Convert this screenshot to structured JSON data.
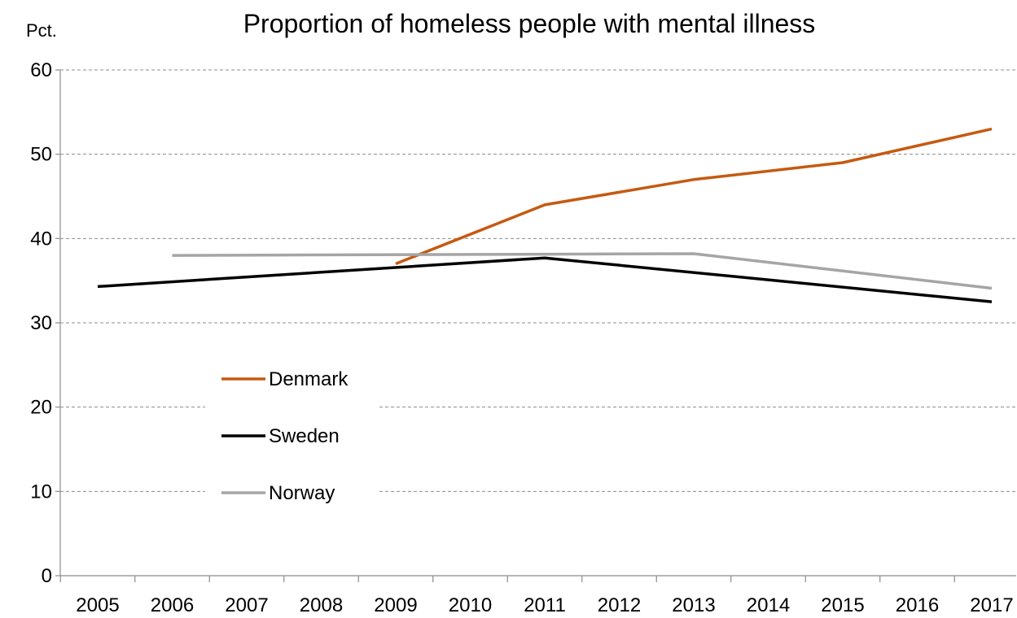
{
  "chart_data": {
    "type": "line",
    "title": "Proportion of homeless people with mental illness",
    "ylabel": "Pct.",
    "xlabel": "",
    "x": [
      "2005",
      "2006",
      "2007",
      "2008",
      "2009",
      "2010",
      "2011",
      "2012",
      "2013",
      "2014",
      "2015",
      "2016",
      "2017"
    ],
    "yticks": [
      "0",
      "10",
      "20",
      "30",
      "40",
      "50",
      "60"
    ],
    "ylim": [
      0,
      60
    ],
    "grid": true,
    "legend_position": "center-left",
    "series": [
      {
        "name": "Denmark",
        "color": "#c55a11",
        "points": [
          {
            "x": 2009,
            "y": 37
          },
          {
            "x": 2011,
            "y": 44
          },
          {
            "x": 2013,
            "y": 47
          },
          {
            "x": 2015,
            "y": 49
          },
          {
            "x": 2017,
            "y": 53
          }
        ]
      },
      {
        "name": "Sweden",
        "color": "#000000",
        "points": [
          {
            "x": 2005,
            "y": 34.3
          },
          {
            "x": 2011,
            "y": 37.7
          },
          {
            "x": 2017,
            "y": 32.5
          }
        ]
      },
      {
        "name": "Norway",
        "color": "#a5a5a5",
        "points": [
          {
            "x": 2006,
            "y": 38
          },
          {
            "x": 2013,
            "y": 38.2
          },
          {
            "x": 2017,
            "y": 34.1
          }
        ]
      }
    ]
  }
}
